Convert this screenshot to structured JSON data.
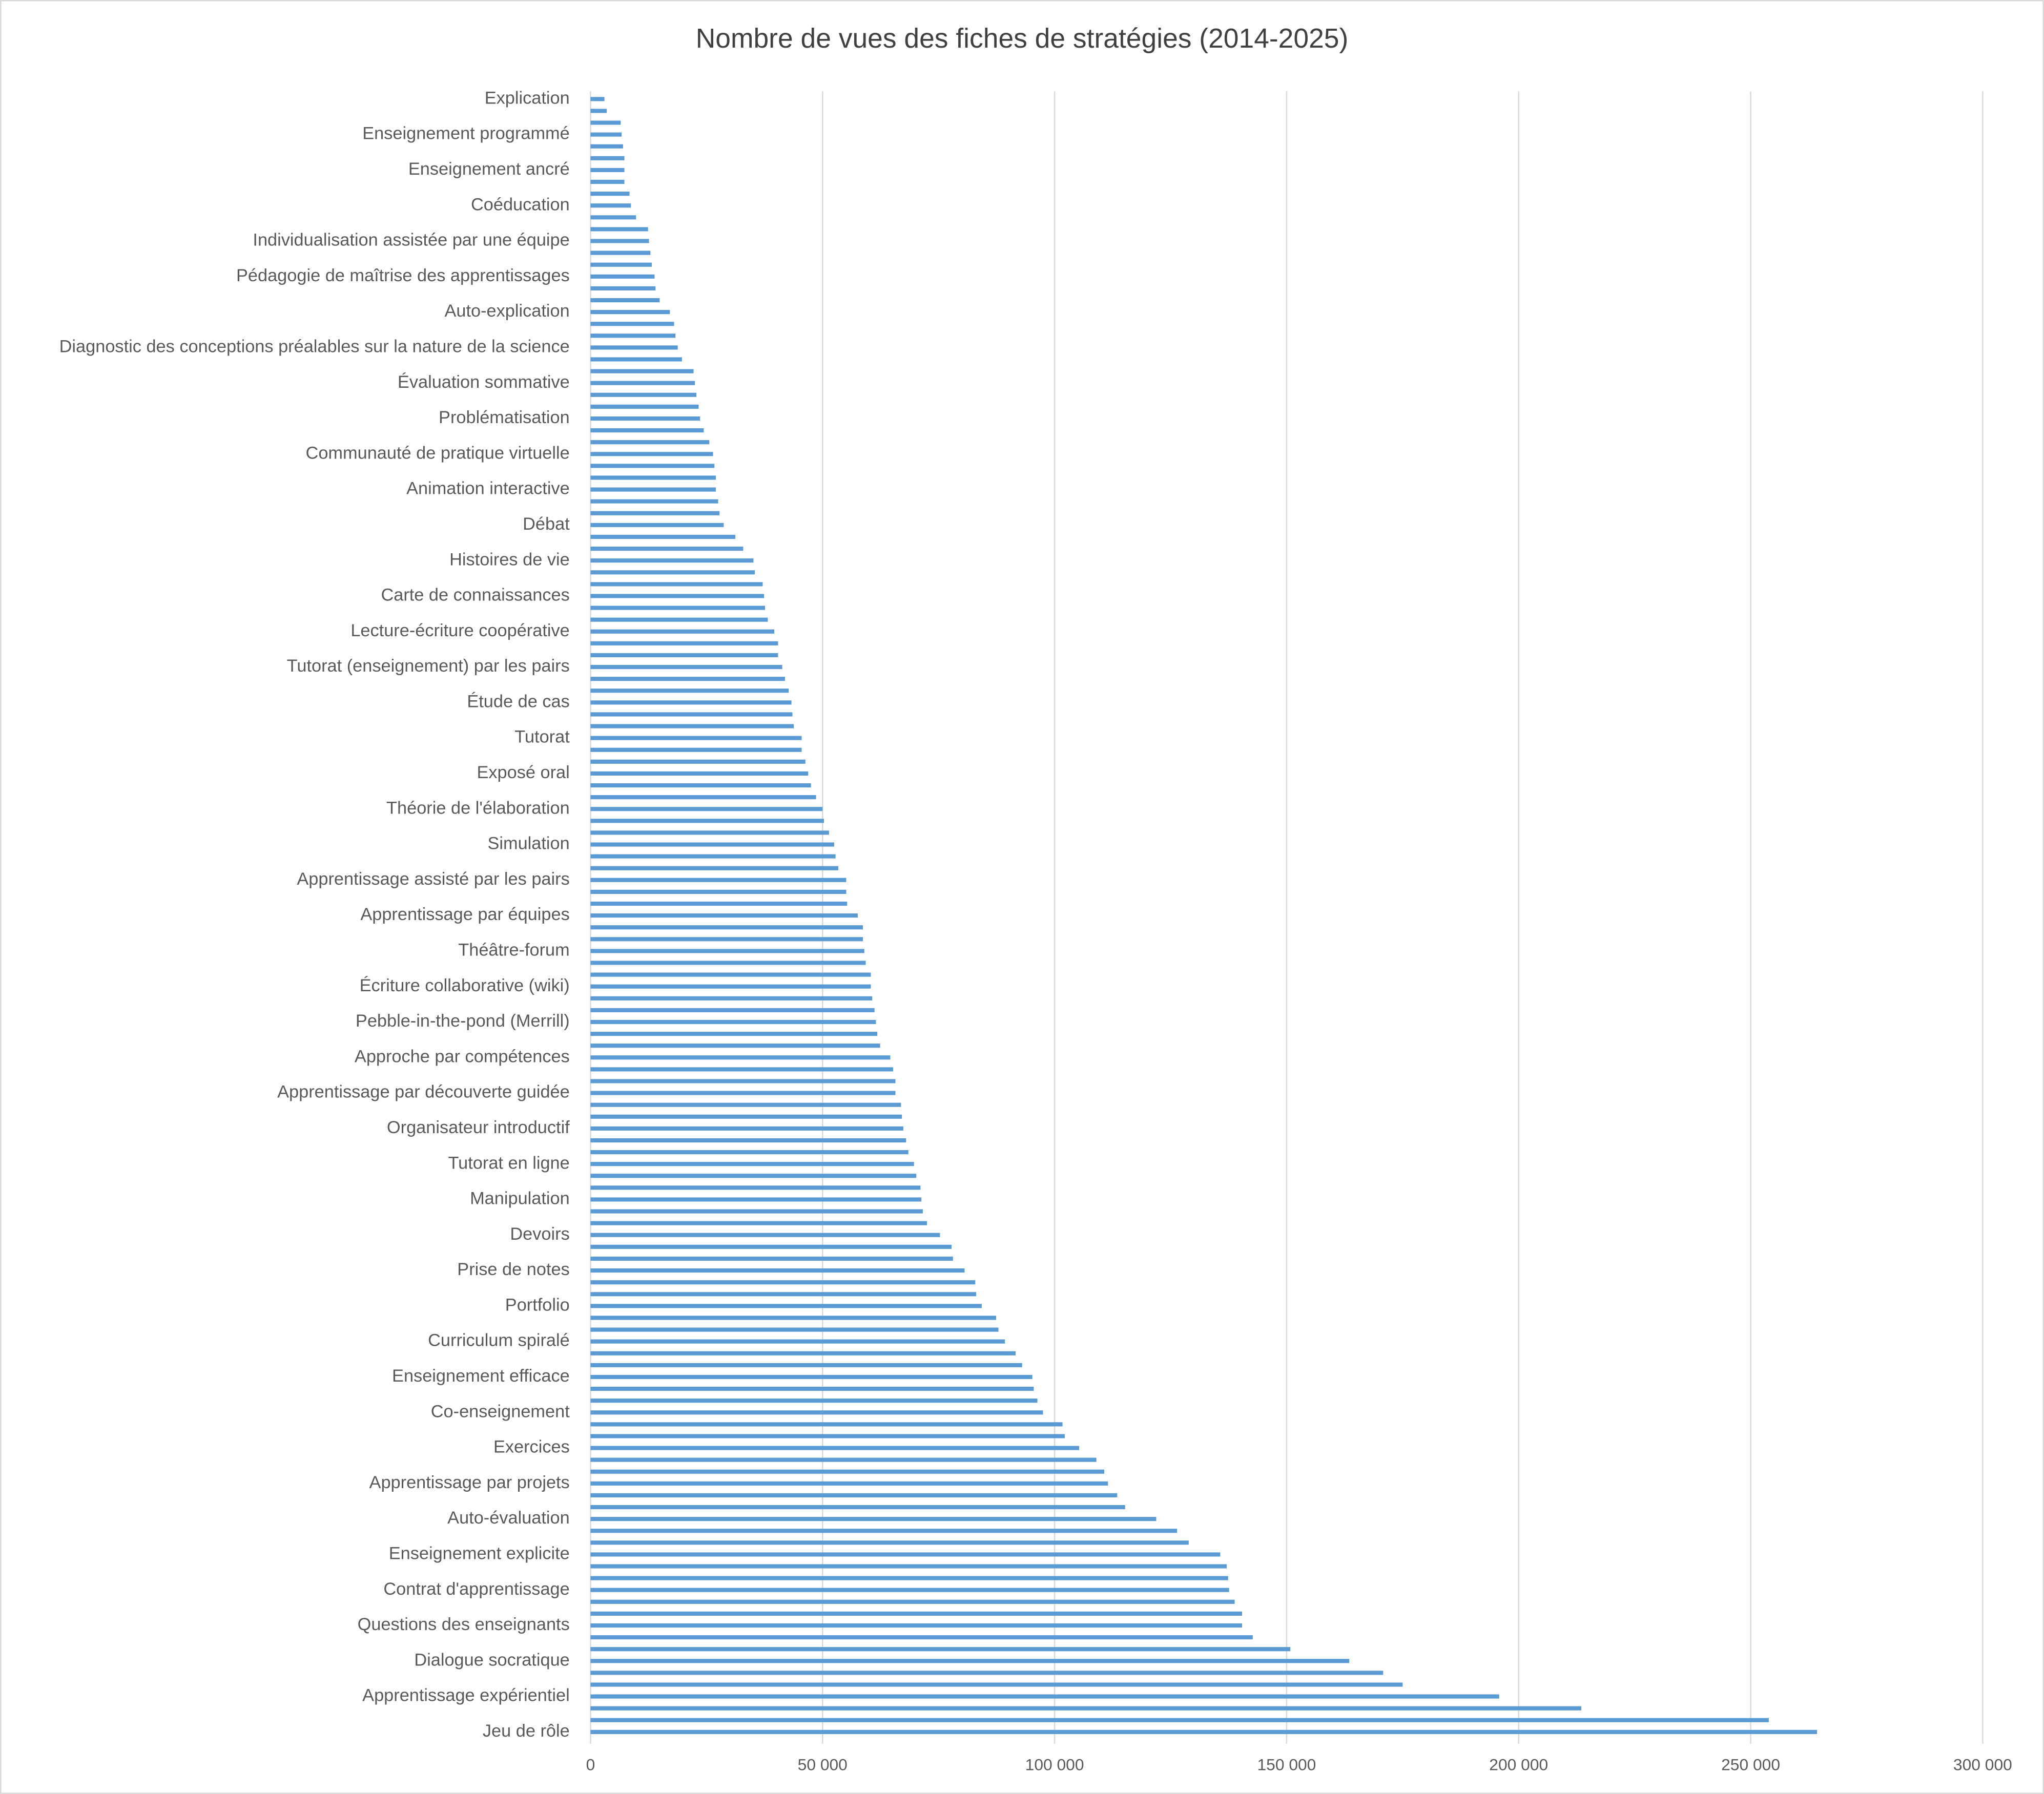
{
  "chart_data": {
    "type": "barh",
    "title": "Nombre de vues des fiches de stratégies (2014-2025)",
    "categories": [
      "Explication",
      null,
      null,
      "Enseignement programmé",
      null,
      null,
      "Enseignement ancré",
      null,
      null,
      "Coéducation",
      null,
      null,
      "Individualisation assistée par une équipe",
      null,
      null,
      "Pédagogie de maîtrise des apprentissages",
      null,
      null,
      "Auto-explication",
      null,
      null,
      "Diagnostic des conceptions préalables sur la nature de la science",
      null,
      null,
      "Évaluation sommative",
      null,
      null,
      "Problématisation",
      null,
      null,
      "Communauté de pratique virtuelle",
      null,
      null,
      "Animation interactive",
      null,
      null,
      "Débat",
      null,
      null,
      "Histoires de vie",
      null,
      null,
      "Carte de connaissances",
      null,
      null,
      "Lecture-écriture coopérative",
      null,
      null,
      "Tutorat (enseignement) par les pairs",
      null,
      null,
      "Étude de cas",
      null,
      null,
      "Tutorat",
      null,
      null,
      "Exposé oral",
      null,
      null,
      "Théorie de l'élaboration",
      null,
      null,
      "Simulation",
      null,
      null,
      "Apprentissage assisté par les pairs",
      null,
      null,
      "Apprentissage par équipes",
      null,
      null,
      "Théâtre-forum",
      null,
      null,
      "Écriture collaborative (wiki)",
      null,
      null,
      "Pebble-in-the-pond (Merrill)",
      null,
      null,
      "Approche par compétences",
      null,
      null,
      "Apprentissage par découverte guidée",
      null,
      null,
      "Organisateur introductif",
      null,
      null,
      "Tutorat en ligne",
      null,
      null,
      "Manipulation",
      null,
      null,
      "Devoirs",
      null,
      null,
      "Prise de notes",
      null,
      null,
      "Portfolio",
      null,
      null,
      "Curriculum spiralé",
      null,
      null,
      "Enseignement efficace",
      null,
      null,
      "Co-enseignement",
      null,
      null,
      "Exercices",
      null,
      null,
      "Apprentissage par projets",
      null,
      null,
      "Auto-évaluation",
      null,
      null,
      "Enseignement explicite",
      null,
      null,
      "Contrat d'apprentissage",
      null,
      null,
      "Questions des enseignants",
      null,
      null,
      "Dialogue socratique",
      null,
      null,
      "Apprentissage expérientiel",
      null,
      null,
      "Jeu de rôle"
    ],
    "values": [
      3000,
      3500,
      6500,
      6700,
      7000,
      7300,
      7300,
      7300,
      8400,
      8700,
      9800,
      12400,
      12600,
      12900,
      13200,
      13800,
      14000,
      14900,
      17100,
      18000,
      18300,
      18800,
      19700,
      22200,
      22500,
      22800,
      23300,
      23600,
      24400,
      25600,
      26400,
      26700,
      27000,
      27000,
      27500,
      27800,
      28700,
      31200,
      32900,
      35100,
      35400,
      37100,
      37400,
      37600,
      38200,
      39600,
      40400,
      40400,
      41300,
      41900,
      42700,
      43300,
      43500,
      43800,
      45500,
      45500,
      46300,
      46900,
      47500,
      48600,
      50000,
      50300,
      51400,
      52500,
      52800,
      53400,
      55100,
      55100,
      55300,
      57600,
      58700,
      58700,
      59000,
      59300,
      60400,
      60400,
      60700,
      61200,
      61500,
      61800,
      62400,
      64600,
      65200,
      65700,
      65700,
      66900,
      67100,
      67400,
      68000,
      68500,
      69700,
      70200,
      71100,
      71300,
      71600,
      72500,
      75300,
      77800,
      78100,
      80600,
      82900,
      83100,
      84300,
      87400,
      87900,
      89300,
      91600,
      93000,
      95200,
      95500,
      96300,
      97500,
      101700,
      102200,
      105300,
      109000,
      110700,
      111500,
      113500,
      115200,
      121900,
      126400,
      128900,
      135700,
      137100,
      137400,
      137600,
      138800,
      140400,
      140400,
      142700,
      150800,
      163500,
      170800,
      175000,
      195800,
      213500,
      253900,
      264300
    ],
    "color": "#5b9bd5",
    "xlim": [
      0,
      300000
    ],
    "xticks": [
      0,
      {
        "value": 50000,
        "label": "50 000"
      },
      {
        "value": 100000,
        "label": "100 000"
      },
      {
        "value": 150000,
        "label": "150 000"
      },
      {
        "value": 200000,
        "label": "200 000"
      },
      {
        "value": 250000,
        "label": "250 000"
      },
      {
        "value": 300000,
        "label": "300 000"
      }
    ],
    "grid": true
  }
}
